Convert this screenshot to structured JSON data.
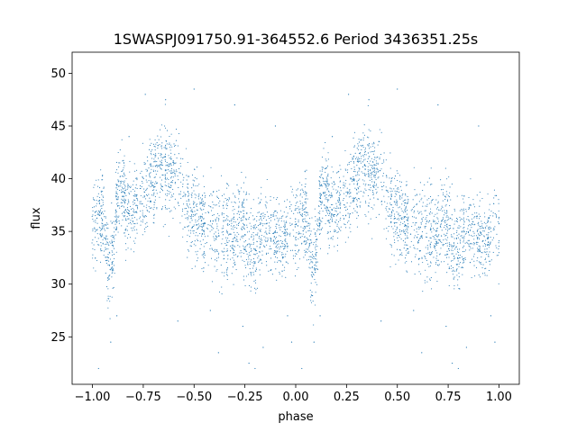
{
  "chart_data": {
    "type": "scatter",
    "title": "1SWASPJ091750.91-364552.6 Period 3436351.25s",
    "xlabel": "phase",
    "ylabel": "flux",
    "xlim": [
      -1.1,
      1.1
    ],
    "ylim": [
      20.5,
      52.0
    ],
    "xticks": [
      -1.0,
      -0.75,
      -0.5,
      -0.25,
      0.0,
      0.25,
      0.5,
      0.75,
      1.0
    ],
    "xtick_labels": [
      "−1.00",
      "−0.75",
      "−0.50",
      "−0.25",
      "0.00",
      "0.25",
      "0.50",
      "0.75",
      "1.00"
    ],
    "yticks": [
      25,
      30,
      35,
      40,
      45,
      50
    ],
    "ytick_labels": [
      "25",
      "30",
      "35",
      "40",
      "45",
      "50"
    ],
    "grid": false,
    "legend": "none",
    "marker_color": "#1f77b4",
    "series": [
      {
        "x": [
          0.0,
          0.02,
          0.04,
          0.06,
          0.08,
          0.1,
          0.12,
          0.14,
          0.16,
          0.18,
          0.2,
          0.22,
          0.24,
          0.26,
          0.28,
          0.3,
          0.32,
          0.34,
          0.36,
          0.38,
          0.4,
          0.42,
          0.44,
          0.46,
          0.48,
          0.5,
          0.52,
          0.54,
          0.56,
          0.58,
          0.6,
          0.62,
          0.64,
          0.66,
          0.68,
          0.7,
          0.72,
          0.74,
          0.76,
          0.78,
          0.8,
          0.82,
          0.84,
          0.86,
          0.88,
          0.9,
          0.92,
          0.94,
          0.96,
          0.98,
          1.0
        ],
        "y": [
          35.5,
          36.2,
          37.0,
          35.2,
          31.5,
          33.5,
          37.8,
          39.8,
          38.0,
          37.3,
          37.0,
          37.6,
          37.8,
          38.5,
          39.5,
          40.3,
          41.2,
          41.5,
          41.0,
          40.5,
          40.0,
          39.4,
          38.6,
          37.9,
          37.2,
          36.6,
          36.2,
          35.9,
          35.6,
          35.4,
          35.2,
          35.0,
          34.8,
          34.6,
          34.8,
          35.4,
          36.5,
          35.8,
          34.5,
          33.2,
          32.8,
          34.0,
          35.0,
          35.2,
          35.0,
          34.7,
          34.5,
          34.6,
          35.1,
          35.6,
          35.5
        ],
        "spread": [
          1.6,
          1.8,
          2.0,
          2.2,
          2.5,
          2.2,
          2.0,
          2.2,
          2.0,
          1.8,
          1.6,
          1.6,
          1.7,
          1.8,
          2.0,
          2.2,
          2.3,
          2.4,
          2.4,
          2.3,
          2.2,
          2.2,
          2.2,
          2.2,
          2.2,
          2.2,
          2.2,
          2.2,
          2.2,
          2.2,
          2.3,
          2.4,
          2.5,
          2.6,
          2.6,
          2.6,
          2.8,
          3.0,
          3.0,
          2.6,
          2.4,
          2.2,
          2.0,
          1.8,
          1.6,
          1.5,
          1.5,
          1.5,
          1.5,
          1.6,
          1.6
        ],
        "outliers": [
          [
            0.03,
            22.0
          ],
          [
            0.09,
            24.5
          ],
          [
            0.12,
            27.0
          ],
          [
            0.18,
            44.0
          ],
          [
            0.26,
            48.0
          ],
          [
            0.36,
            47.5
          ],
          [
            0.42,
            26.5
          ],
          [
            0.5,
            48.5
          ],
          [
            0.58,
            27.5
          ],
          [
            0.62,
            23.5
          ],
          [
            0.7,
            47.0
          ],
          [
            0.74,
            26.0
          ],
          [
            0.77,
            22.5
          ],
          [
            0.8,
            22.0
          ],
          [
            0.84,
            24.0
          ],
          [
            0.9,
            45.0
          ],
          [
            0.96,
            27.0
          ],
          [
            0.98,
            24.5
          ]
        ]
      }
    ]
  }
}
